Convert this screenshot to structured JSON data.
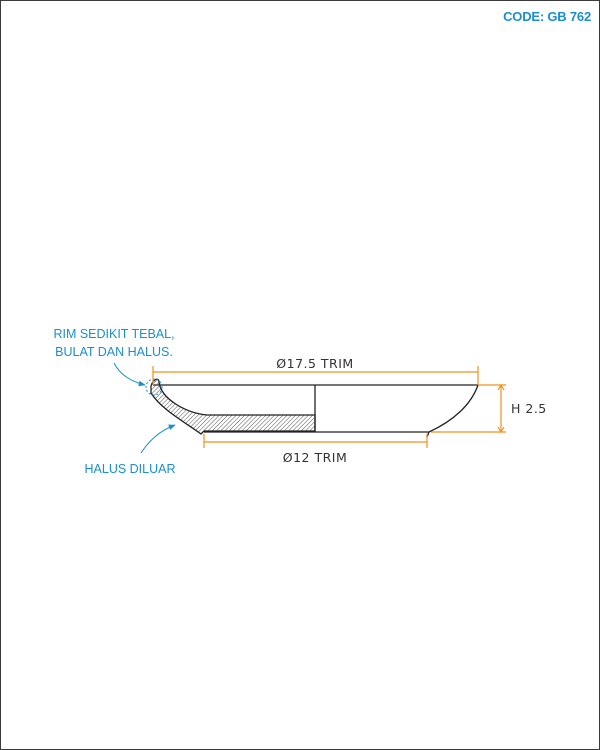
{
  "header": {
    "code": "CODE: GB 762"
  },
  "dimensions": {
    "outer_diameter": "Ø17.5 TRIM",
    "base_diameter": "Ø12 TRIM",
    "height": "H 2.5"
  },
  "notes": {
    "rim_line1": "RIM SEDIKIT TEBAL,",
    "rim_line2": "BULAT DAN HALUS.",
    "outer": "HALUS DILUAR"
  },
  "colors": {
    "accent": "#1a8fd0",
    "dimension": "#f0901e",
    "outline": "#222222"
  }
}
